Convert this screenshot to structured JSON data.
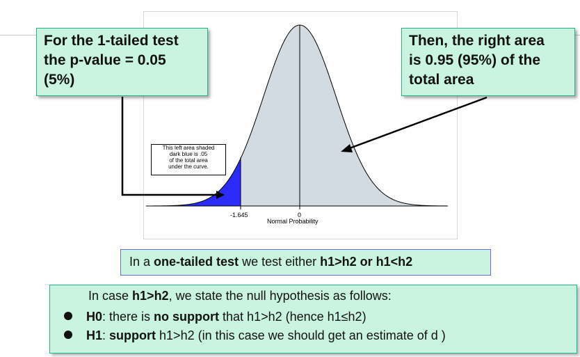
{
  "callouts": {
    "left": {
      "line1": "For the 1-tailed test",
      "line2": "the p-value = 0.05",
      "line3": "(5%)"
    },
    "right": {
      "line1": "Then, the right area",
      "line2": "is 0.95 (95%) of the",
      "line3": "total area"
    }
  },
  "plot": {
    "note": {
      "line1": "This left area shaded",
      "line2": "dark blue is .05",
      "line3": "of the total area",
      "line4": "under the curve."
    },
    "ticks": {
      "left_value": "-1.645",
      "center_value": "0"
    },
    "axis_label": "Normal Probability",
    "colors": {
      "tail_fill": "#2b2bff",
      "body_fill": "#d3dbe2"
    }
  },
  "one_tailed": {
    "prefix": "In a ",
    "term": "one-tailed test",
    "middle": " we test either ",
    "cases": "h1>h2 or h1<h2"
  },
  "hypotheses": {
    "intro_prefix": "In case ",
    "intro_case": "h1>h2",
    "intro_suffix": ", we state the null hypothesis as follows:",
    "h0_label": "H0",
    "h0_text1": ": there is ",
    "h0_bold": "no support",
    "h0_text2": " that h1>h2 (hence h1≤h2)",
    "h1_label": "H1",
    "h1_text1": ": ",
    "h1_bold": "support",
    "h1_text2": " h1>h2 (in this case we should get an estimate of d )"
  }
}
